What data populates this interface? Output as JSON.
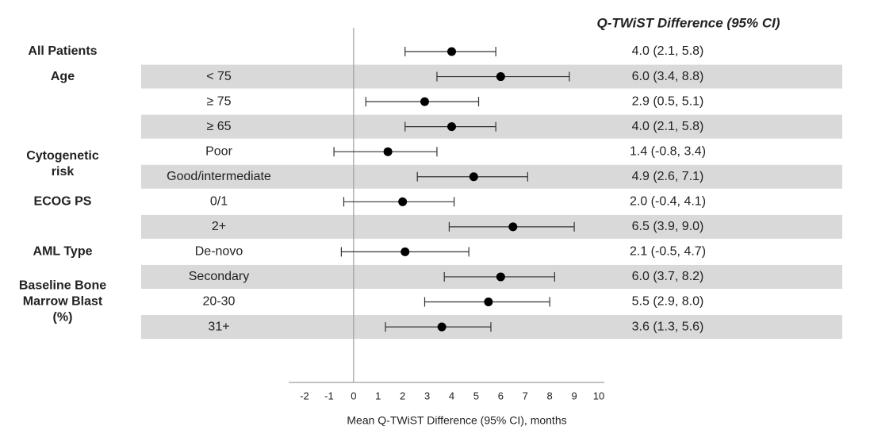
{
  "chart_data": {
    "type": "forest",
    "header": "Q-TWiST Difference (95% CI)",
    "xlabel": "Mean Q-TWiST Difference (95% CI), months",
    "xlim": [
      -2,
      10
    ],
    "xticks": [
      "-2",
      "-1",
      "0",
      "1",
      "2",
      "3",
      "4",
      "5",
      "6",
      "7",
      "8",
      "9",
      "10"
    ],
    "group_labels": [
      {
        "label": "All Patients",
        "row": 0
      },
      {
        "label": "Age",
        "row": 1
      },
      {
        "label": "Cytogenetic risk",
        "row": 4.5
      },
      {
        "label": "ECOG PS",
        "row": 6
      },
      {
        "label": "AML Type",
        "row": 8
      },
      {
        "label": "Baseline Bone Marrow Blast (%)",
        "row": 10
      }
    ],
    "rows": [
      {
        "subgroup": "",
        "estimate": 4.0,
        "lower": 2.1,
        "upper": 5.8,
        "ci_text": "4.0 (2.1, 5.8)",
        "shaded": false
      },
      {
        "subgroup": "< 75",
        "estimate": 6.0,
        "lower": 3.4,
        "upper": 8.8,
        "ci_text": "6.0 (3.4, 8.8)",
        "shaded": true
      },
      {
        "subgroup": "≥ 75",
        "estimate": 2.9,
        "lower": 0.5,
        "upper": 5.1,
        "ci_text": "2.9 (0.5, 5.1)",
        "shaded": false
      },
      {
        "subgroup": "≥ 65",
        "estimate": 4.0,
        "lower": 2.1,
        "upper": 5.8,
        "ci_text": "4.0 (2.1, 5.8)",
        "shaded": true
      },
      {
        "subgroup": "Poor",
        "estimate": 1.4,
        "lower": -0.8,
        "upper": 3.4,
        "ci_text": "1.4 (-0.8, 3.4)",
        "shaded": false
      },
      {
        "subgroup": "Good/intermediate",
        "estimate": 4.9,
        "lower": 2.6,
        "upper": 7.1,
        "ci_text": "4.9 (2.6, 7.1)",
        "shaded": true
      },
      {
        "subgroup": "0/1",
        "estimate": 2.0,
        "lower": -0.4,
        "upper": 4.1,
        "ci_text": "2.0 (-0.4, 4.1)",
        "shaded": false
      },
      {
        "subgroup": "2+",
        "estimate": 6.5,
        "lower": 3.9,
        "upper": 9.0,
        "ci_text": "6.5 (3.9, 9.0)",
        "shaded": true
      },
      {
        "subgroup": "De-novo",
        "estimate": 2.1,
        "lower": -0.5,
        "upper": 4.7,
        "ci_text": "2.1 (-0.5, 4.7)",
        "shaded": false
      },
      {
        "subgroup": "Secondary",
        "estimate": 6.0,
        "lower": 3.7,
        "upper": 8.2,
        "ci_text": "6.0 (3.7, 8.2)",
        "shaded": true
      },
      {
        "subgroup": "20-30",
        "estimate": 5.5,
        "lower": 2.9,
        "upper": 8.0,
        "ci_text": "5.5 (2.9, 8.0)",
        "shaded": false
      },
      {
        "subgroup": "31+",
        "estimate": 3.6,
        "lower": 1.3,
        "upper": 5.6,
        "ci_text": "3.6 (1.3, 5.6)",
        "shaded": true
      }
    ],
    "colors": {
      "band": "#d9d9d9",
      "marker": "#000000",
      "axis": "#9e9e9e",
      "text": "#222222"
    }
  }
}
